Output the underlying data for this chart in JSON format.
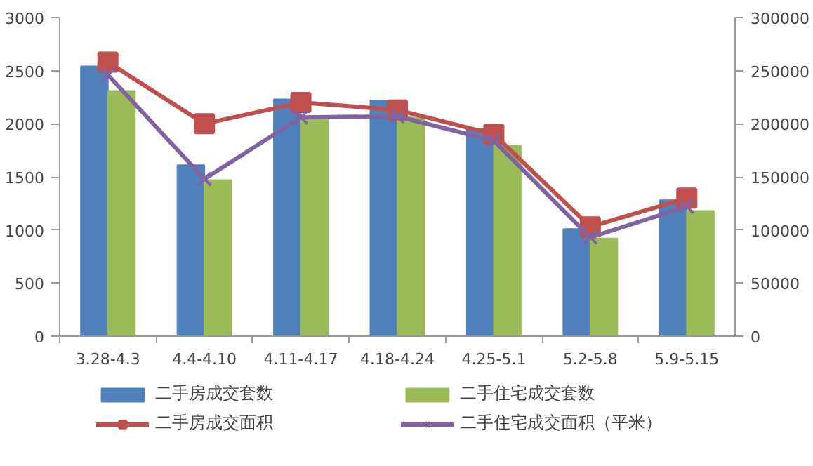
{
  "chart_data": {
    "type": "bar",
    "categories": [
      "3.28-4.3",
      "4.4-4.10",
      "4.11-4.17",
      "4.18-4.24",
      "4.25-5.1",
      "5.2-5.8",
      "5.9-5.15"
    ],
    "series": [
      {
        "name": "二手房成交套数",
        "color": "#4f81bd",
        "values": [
          2540,
          1610,
          2230,
          2220,
          1950,
          1010,
          1280
        ]
      },
      {
        "name": "二手住宅成交套数",
        "color": "#9bbb59",
        "values": [
          2310,
          1470,
          2060,
          2060,
          1790,
          920,
          1180
        ]
      },
      {
        "name": "二手房成交面积",
        "type": "line",
        "axis": "y2",
        "marker": "square",
        "color": "#c0504d",
        "values": [
          258000,
          200000,
          220000,
          213000,
          190000,
          103000,
          130000
        ]
      },
      {
        "name": "二手住宅成交面积（平米）",
        "type": "line",
        "axis": "y2",
        "marker": "cross",
        "color": "#8064a2",
        "values": [
          246000,
          148000,
          206000,
          207000,
          184000,
          93000,
          122000
        ]
      }
    ],
    "ylim": [
      0,
      3000
    ],
    "yticks": [
      0,
      500,
      1000,
      1500,
      2000,
      2500,
      3000
    ],
    "y2lim": [
      0,
      300000
    ],
    "y2ticks": [
      0,
      50000,
      100000,
      150000,
      200000,
      250000,
      300000
    ],
    "grid": false,
    "legend": "bottom"
  }
}
